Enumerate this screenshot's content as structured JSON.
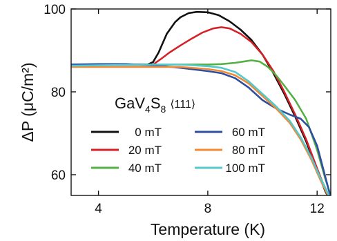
{
  "chart_data": {
    "type": "line",
    "xlabel": "Temperature (K)",
    "ylabel": "ΔP (μC/m²)",
    "xlim": [
      3,
      12.5
    ],
    "ylim": [
      55,
      100
    ],
    "xticks": [
      4,
      8,
      12
    ],
    "yticks": [
      60,
      80,
      100
    ],
    "grid": false,
    "legend_position": "lower-left",
    "annotation": {
      "compound_base": "GaV",
      "sub1": "4",
      "compound_mid": "S",
      "sub2": "8",
      "direction": "⟨111⟩"
    },
    "series": [
      {
        "name": "0 mT",
        "color": "#111111",
        "x": [
          3,
          4,
          5,
          5.5,
          5.8,
          6.0,
          6.2,
          6.5,
          6.8,
          7.0,
          7.3,
          7.6,
          8.0,
          8.4,
          8.8,
          9.2,
          9.6,
          10.0,
          10.4,
          10.8,
          11.2,
          11.6,
          12.0,
          12.3,
          12.5
        ],
        "y": [
          86.5,
          86.6,
          86.6,
          86.6,
          86.6,
          87.2,
          89.5,
          94.0,
          96.8,
          98.0,
          99.0,
          99.3,
          99.2,
          98.5,
          97.0,
          95.0,
          92.5,
          89.0,
          84.5,
          79.5,
          74.0,
          68.0,
          61.0,
          56.0,
          53.5
        ]
      },
      {
        "name": "20 mT",
        "color": "#d42128",
        "x": [
          3,
          4,
          5,
          5.8,
          6.0,
          6.3,
          6.6,
          7.0,
          7.4,
          7.8,
          8.2,
          8.5,
          8.8,
          9.2,
          9.6,
          10.0,
          10.4,
          10.8,
          11.2,
          11.6,
          12.0,
          12.3,
          12.5
        ],
        "y": [
          86.3,
          86.5,
          86.5,
          86.5,
          86.6,
          88.0,
          89.5,
          91.2,
          92.8,
          94.3,
          95.3,
          95.6,
          95.3,
          94.0,
          92.0,
          89.0,
          85.0,
          80.0,
          74.5,
          68.5,
          61.5,
          56.5,
          53.5
        ]
      },
      {
        "name": "40 mT",
        "color": "#55b043",
        "x": [
          3,
          4,
          5,
          6,
          7,
          8,
          8.5,
          9.0,
          9.3,
          9.6,
          9.9,
          10.2,
          10.5,
          10.8,
          11.2,
          11.6,
          12.0,
          12.3,
          12.5
        ],
        "y": [
          86.3,
          86.5,
          86.5,
          86.5,
          86.6,
          86.6,
          86.7,
          87.0,
          87.3,
          87.6,
          87.3,
          86.0,
          84.0,
          81.5,
          78.0,
          73.5,
          66.0,
          59.0,
          55.0
        ]
      },
      {
        "name": "60 mT",
        "color": "#2e4ea0",
        "x": [
          3,
          4,
          5,
          6,
          7,
          8,
          8.5,
          9.0,
          9.5,
          10.0,
          10.5,
          11.0,
          11.4,
          11.7,
          12.0,
          12.2,
          12.4,
          12.5
        ],
        "y": [
          86.6,
          86.7,
          86.7,
          86.4,
          85.8,
          85.0,
          84.5,
          83.3,
          81.0,
          78.0,
          76.0,
          74.5,
          73.5,
          71.5,
          67.0,
          62.0,
          57.0,
          54.5
        ]
      },
      {
        "name": "80 mT",
        "color": "#f08a35",
        "x": [
          3,
          4,
          5,
          6,
          7,
          8,
          8.5,
          9.0,
          9.5,
          10.0,
          10.5,
          11.0,
          11.4,
          11.8,
          12.1,
          12.4,
          12.5
        ],
        "y": [
          86.0,
          86.0,
          86.0,
          86.0,
          86.0,
          85.5,
          85.0,
          84.0,
          82.0,
          79.0,
          76.0,
          72.5,
          68.5,
          63.5,
          59.0,
          55.0,
          53.5
        ]
      },
      {
        "name": "100 mT",
        "color": "#56c8cc",
        "x": [
          3,
          4,
          5,
          6,
          7,
          8,
          8.5,
          9.0,
          9.5,
          10.0,
          10.5,
          11.0,
          11.4,
          11.8,
          12.1,
          12.4,
          12.5
        ],
        "y": [
          86.3,
          86.4,
          86.5,
          86.6,
          86.6,
          86.2,
          85.8,
          84.8,
          82.5,
          79.5,
          76.5,
          73.0,
          69.0,
          64.0,
          59.5,
          55.5,
          54.0
        ]
      }
    ]
  }
}
